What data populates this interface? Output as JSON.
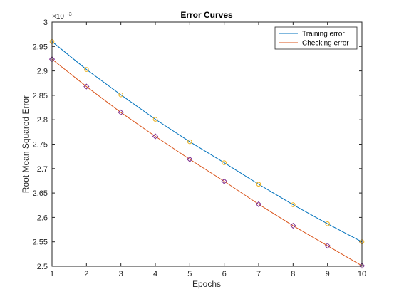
{
  "chart_data": {
    "type": "line",
    "title": "Error Curves",
    "xlabel": "Epochs",
    "ylabel": "Root Mean Squared Error",
    "exponent_label": {
      "base": "×10",
      "power": "-3"
    },
    "xlim": [
      1,
      10
    ],
    "ylim": [
      2.5,
      3.0
    ],
    "xticks": [
      "1",
      "2",
      "3",
      "4",
      "5",
      "6",
      "7",
      "8",
      "9",
      "10"
    ],
    "xtick_values": [
      1,
      2,
      3,
      4,
      5,
      6,
      7,
      8,
      9,
      10
    ],
    "yticks": [
      "2.5",
      "2.55",
      "2.6",
      "2.65",
      "2.7",
      "2.75",
      "2.8",
      "2.85",
      "2.9",
      "2.95",
      "3"
    ],
    "ytick_values": [
      2.5,
      2.55,
      2.6,
      2.65,
      2.7,
      2.75,
      2.8,
      2.85,
      2.9,
      2.95,
      3.0
    ],
    "x": [
      1,
      2,
      3,
      4,
      5,
      6,
      7,
      8,
      9,
      10
    ],
    "grid": false,
    "legend_position": "top-right",
    "series": [
      {
        "name": "Training error",
        "color": "#0072bd",
        "marker": "circle",
        "marker_color": "#edb120",
        "values": [
          2.96,
          2.903,
          2.851,
          2.801,
          2.755,
          2.712,
          2.668,
          2.626,
          2.587,
          2.55
        ]
      },
      {
        "name": "Checking error",
        "color": "#d95319",
        "marker": "diamond",
        "marker_color": "#7e2f8e",
        "values": [
          2.924,
          2.868,
          2.815,
          2.766,
          2.719,
          2.674,
          2.627,
          2.583,
          2.542,
          2.501
        ]
      }
    ]
  }
}
